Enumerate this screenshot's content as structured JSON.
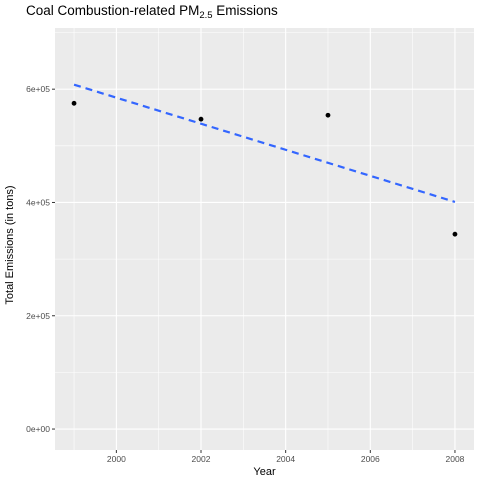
{
  "chart_data": {
    "type": "scatter",
    "title_main": "Coal Combustion-related PM",
    "title_sub": "2.5",
    "title_tail": " Emissions",
    "xlabel": "Year",
    "ylabel": "Total Emissions (in tons)",
    "xlim": [
      1998.55,
      2008.45
    ],
    "ylim": [
      -37000,
      708000
    ],
    "x_ticks": [
      2000,
      2002,
      2004,
      2006,
      2008
    ],
    "x_tick_labels": [
      "2000",
      "2002",
      "2004",
      "2006",
      "2008"
    ],
    "y_ticks": [
      0,
      200000,
      400000,
      600000
    ],
    "y_tick_labels": [
      "0e+00",
      "2e+05",
      "4e+05",
      "6e+05"
    ],
    "grid": true,
    "points": [
      {
        "x": 1999,
        "y": 575000
      },
      {
        "x": 2002,
        "y": 547000
      },
      {
        "x": 2005,
        "y": 554000
      },
      {
        "x": 2008,
        "y": 344000
      }
    ],
    "trend_line": {
      "x": [
        1999,
        2008
      ],
      "y": [
        608000,
        401000
      ],
      "style": "dashed"
    },
    "colors": {
      "panel_bg": "#ebebeb",
      "grid_major": "#ffffff",
      "point": "#000000",
      "trend": "#3366ff",
      "tick_mark": "#333333"
    }
  }
}
